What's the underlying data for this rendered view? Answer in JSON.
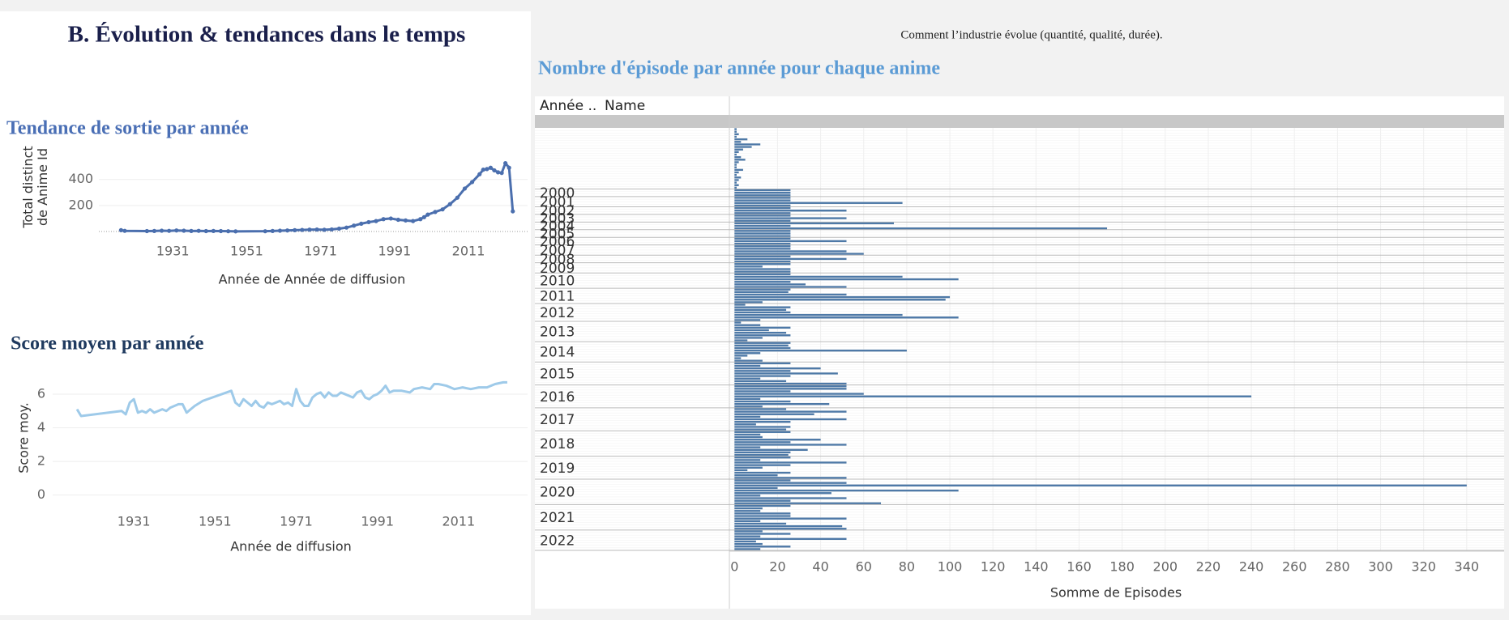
{
  "header": {
    "title": "B. Évolution & tendances dans le temps",
    "subtitle": "Comment l’industrie évolue (quantité, qualité, durée)."
  },
  "chart_data": [
    {
      "type": "line",
      "title": "Tendance de sortie par année",
      "y_label": "Total distinct de Anime Id",
      "x_label": "Année de Année de diffusion",
      "x": [
        1917,
        1918,
        1924,
        1926,
        1928,
        1930,
        1932,
        1934,
        1936,
        1938,
        1940,
        1942,
        1944,
        1946,
        1948,
        1956,
        1958,
        1960,
        1962,
        1964,
        1966,
        1968,
        1970,
        1972,
        1974,
        1976,
        1978,
        1980,
        1982,
        1984,
        1986,
        1988,
        1990,
        1992,
        1994,
        1996,
        1998,
        1999,
        2000,
        2002,
        2004,
        2006,
        2008,
        2010,
        2012,
        2014,
        2015,
        2016,
        2017,
        2018,
        2019,
        2020,
        2021,
        2022,
        2023
      ],
      "values": [
        10,
        5,
        3,
        4,
        6,
        5,
        8,
        6,
        4,
        5,
        3,
        4,
        3,
        2,
        1,
        2,
        4,
        6,
        8,
        10,
        12,
        14,
        15,
        13,
        16,
        22,
        30,
        45,
        60,
        72,
        80,
        95,
        100,
        90,
        85,
        80,
        95,
        110,
        130,
        150,
        170,
        210,
        260,
        330,
        380,
        440,
        475,
        480,
        490,
        470,
        455,
        450,
        525,
        490,
        155
      ],
      "color": "#4b6fae",
      "markers": true,
      "grid": true,
      "xlim": [
        1911,
        2027
      ],
      "xticks": [
        1931,
        1951,
        1971,
        1991,
        2011
      ],
      "ylim": [
        0,
        560
      ],
      "yticks": [
        200,
        400
      ]
    },
    {
      "type": "line",
      "title": "Score moyen par année",
      "y_label": "Score moy.",
      "x_label": "Année de diffusion",
      "x": [
        1917,
        1918,
        1928,
        1929,
        1930,
        1931,
        1932,
        1933,
        1934,
        1935,
        1936,
        1937,
        1938,
        1939,
        1940,
        1942,
        1943,
        1944,
        1945,
        1946,
        1948,
        1955,
        1956,
        1957,
        1958,
        1959,
        1960,
        1961,
        1962,
        1963,
        1964,
        1965,
        1966,
        1967,
        1968,
        1969,
        1970,
        1971,
        1972,
        1973,
        1974,
        1975,
        1976,
        1977,
        1978,
        1979,
        1980,
        1981,
        1982,
        1983,
        1984,
        1985,
        1986,
        1987,
        1988,
        1989,
        1990,
        1991,
        1992,
        1993,
        1994,
        1995,
        1997,
        1999,
        2000,
        2002,
        2004,
        2005,
        2006,
        2008,
        2010,
        2012,
        2014,
        2016,
        2018,
        2020,
        2022,
        2023
      ],
      "values": [
        5.1,
        4.7,
        5.0,
        4.8,
        5.5,
        5.7,
        4.9,
        5.0,
        4.9,
        5.1,
        4.9,
        5.0,
        5.1,
        5.0,
        5.2,
        5.4,
        5.4,
        4.9,
        5.1,
        5.3,
        5.6,
        6.2,
        5.5,
        5.3,
        5.7,
        5.5,
        5.3,
        5.6,
        5.3,
        5.2,
        5.5,
        5.4,
        5.5,
        5.6,
        5.4,
        5.5,
        5.3,
        6.3,
        5.6,
        5.3,
        5.3,
        5.8,
        6.0,
        6.1,
        5.8,
        6.1,
        5.9,
        5.9,
        6.1,
        6.0,
        5.9,
        5.8,
        6.1,
        6.2,
        5.8,
        5.7,
        5.9,
        6.0,
        6.2,
        6.5,
        6.1,
        6.2,
        6.2,
        6.1,
        6.3,
        6.4,
        6.3,
        6.6,
        6.6,
        6.5,
        6.3,
        6.4,
        6.3,
        6.4,
        6.4,
        6.6,
        6.7,
        6.7
      ],
      "color": "#9ecae9",
      "markers": false,
      "grid": true,
      "xlim": [
        1911,
        2028
      ],
      "xticks": [
        1931,
        1951,
        1971,
        1991,
        2011
      ],
      "ylim": [
        -0.4,
        7.2
      ],
      "yticks": [
        0,
        2,
        4,
        6
      ]
    },
    {
      "type": "bar",
      "orientation": "horizontal",
      "title": "Nombre d'épisode par année pour chaque anime",
      "column_headers": [
        "Année ..",
        "Name"
      ],
      "x_label": "Somme de Episodes",
      "color": "#4e79a7",
      "grid": true,
      "groups": [
        {
          "label": null,
          "values": [
            1,
            1,
            2,
            1,
            6,
            3,
            12,
            8,
            4,
            2,
            1,
            3,
            5,
            2,
            1,
            1,
            4,
            2,
            1,
            3,
            2,
            1,
            2,
            1
          ]
        },
        {
          "label": "2000",
          "values": [
            26,
            26,
            26
          ]
        },
        {
          "label": "2001",
          "values": [
            26,
            26,
            78,
            26
          ]
        },
        {
          "label": "2002",
          "values": [
            26,
            52,
            26
          ]
        },
        {
          "label": "2003",
          "values": [
            26,
            52,
            26
          ]
        },
        {
          "label": "2004",
          "values": [
            74,
            26,
            173
          ]
        },
        {
          "label": "2005",
          "values": [
            26,
            26,
            26
          ]
        },
        {
          "label": "2006",
          "values": [
            26,
            52,
            26
          ]
        },
        {
          "label": "2007",
          "values": [
            26,
            26,
            52,
            60
          ]
        },
        {
          "label": "2008",
          "values": [
            26,
            52,
            26
          ]
        },
        {
          "label": "2009",
          "values": [
            26,
            13,
            26,
            26
          ]
        },
        {
          "label": "2010",
          "values": [
            26,
            78,
            104,
            26,
            33,
            52
          ]
        },
        {
          "label": "2011",
          "values": [
            26,
            25,
            52,
            100,
            98,
            13
          ]
        },
        {
          "label": "2012",
          "values": [
            5,
            26,
            24,
            26,
            78,
            104,
            12
          ]
        },
        {
          "label": "2013",
          "values": [
            3,
            12,
            26,
            16,
            24,
            26,
            13,
            6
          ]
        },
        {
          "label": "2014",
          "values": [
            26,
            25,
            26,
            80,
            12,
            6,
            3,
            13
          ]
        },
        {
          "label": "2015",
          "values": [
            26,
            12,
            40,
            26,
            48,
            26,
            12,
            24,
            52
          ]
        },
        {
          "label": "2016",
          "values": [
            52,
            52,
            26,
            60,
            240,
            12,
            26,
            44,
            13
          ]
        },
        {
          "label": "2017",
          "values": [
            24,
            52,
            37,
            12,
            52,
            26,
            10,
            26,
            24
          ]
        },
        {
          "label": "2018",
          "values": [
            26,
            12,
            13,
            40,
            26,
            52,
            12,
            34,
            26,
            25
          ]
        },
        {
          "label": "2019",
          "values": [
            26,
            12,
            52,
            26,
            13,
            6,
            26,
            20,
            52
          ]
        },
        {
          "label": "2020",
          "values": [
            26,
            52,
            340,
            20,
            104,
            45,
            12,
            52,
            26,
            68
          ]
        },
        {
          "label": "2021",
          "values": [
            26,
            13,
            12,
            26,
            26,
            52,
            12,
            24,
            50,
            52
          ]
        },
        {
          "label": "2022",
          "values": [
            13,
            26,
            12,
            52,
            10,
            13,
            26,
            12
          ]
        }
      ],
      "xlim": [
        -2,
        357
      ],
      "xticks": [
        0,
        20,
        40,
        60,
        80,
        100,
        120,
        140,
        160,
        180,
        200,
        220,
        240,
        260,
        280,
        300,
        320,
        340
      ]
    }
  ]
}
